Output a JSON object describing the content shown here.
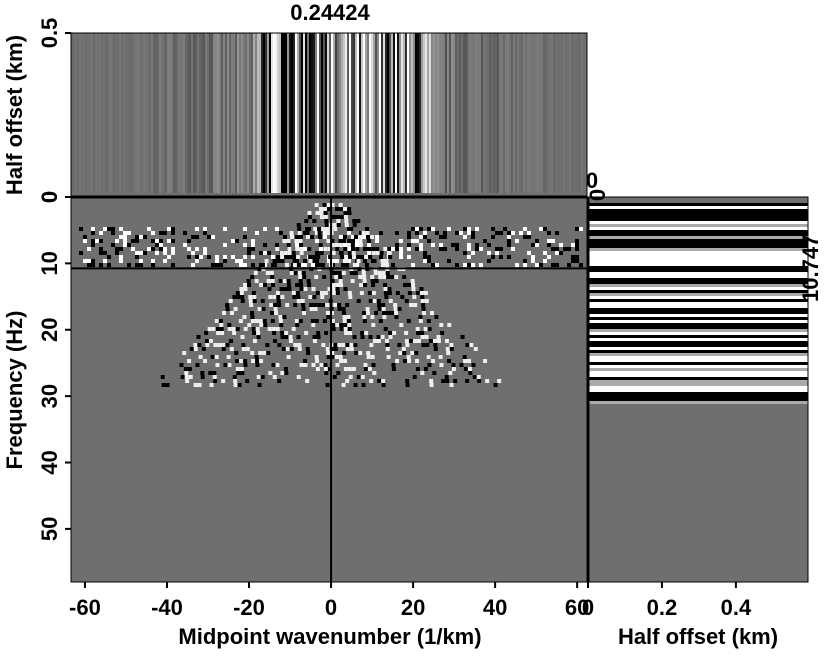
{
  "chart_data": {
    "type": "cube",
    "title": "0.24424",
    "front": {
      "xlabel": "Midpoint wavenumber (1/km)",
      "ylabel": "Frequency (Hz)",
      "xlim": [
        -63.4,
        62.4
      ],
      "xticks": [
        -60,
        -40,
        -20,
        0,
        20,
        40,
        60
      ],
      "ylim": [
        0,
        58
      ],
      "yticks": [
        0,
        10,
        20,
        30,
        40,
        50
      ]
    },
    "top": {
      "ylabel": "Half offset (km)",
      "ylim": [
        0,
        0.5
      ],
      "yticks": [
        0,
        0.5
      ]
    },
    "side": {
      "xlabel": "Half offset (km)",
      "xlim": [
        0,
        0.595
      ],
      "xticks": [
        0,
        0.2,
        0.4
      ]
    },
    "crosshair": {
      "frequency": 10.747,
      "midpoint": 0,
      "half_offset": 0
    }
  }
}
